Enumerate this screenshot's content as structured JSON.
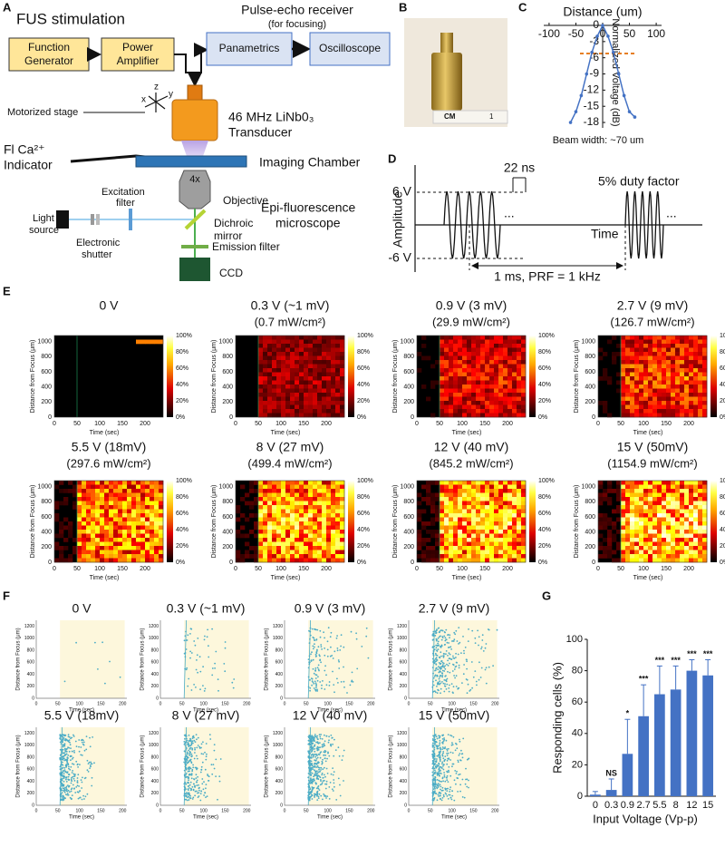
{
  "figure": {
    "labels": {
      "a": "A",
      "b": "B",
      "c": "C",
      "d": "D",
      "e": "E",
      "f": "F",
      "g": "G"
    }
  },
  "panel_a": {
    "title": "FUS stimulation",
    "function_generator": [
      "Function",
      "Generator"
    ],
    "power_amplifier": [
      "Power",
      "Amplifier"
    ],
    "pulse_echo": "Pulse-echo receiver",
    "for_focusing": "(for focusing)",
    "panametrics": "Panametrics",
    "oscilloscope": "Oscilloscope",
    "axes": [
      "x",
      "y",
      "z"
    ],
    "motorized_stage": "Motorized stage",
    "transducer": [
      "46 MHz LiNb0₃",
      "Transducer"
    ],
    "indicator": [
      "Fl Ca²⁺",
      "Indicator"
    ],
    "imaging_chamber": "Imaging Chamber",
    "magnification": "4x",
    "objective": "Objective",
    "excitation_filter": [
      "Excitation",
      "filter"
    ],
    "microscope": [
      "Epi-fluorescence",
      "microscope"
    ],
    "light_source": [
      "Light",
      "source"
    ],
    "dichroic_mirror": [
      "Dichroic",
      "mirror"
    ],
    "electronic_shutter": [
      "Electronic",
      "shutter"
    ],
    "emission_filter": "Emission filter",
    "camera": "CCD"
  },
  "panel_b": {
    "ruler_label": "CM",
    "ruler_number": "1"
  },
  "panel_d": {
    "amplitude_label": "Amplitude",
    "time_label": "Time",
    "positive": "6 V",
    "negative": "-6 V",
    "pulse_width": "22 ns",
    "duty": "5% duty factor",
    "period": "1 ms, PRF = 1 kHz",
    "ellipsis": "..."
  },
  "panel_e": {
    "panels": [
      {
        "title": "0 V"
      },
      {
        "title": "0.3 V (~1 mV)",
        "subtitle": "(0.7 mW/cm²)"
      },
      {
        "title": "0.9 V (3 mV)",
        "subtitle": "(29.9 mW/cm²)"
      },
      {
        "title": "2.7 V (9 mV)",
        "subtitle": "(126.7 mW/cm²)"
      },
      {
        "title": "5.5 V (18mV)",
        "subtitle": "(297.6 mW/cm²)"
      },
      {
        "title": "8 V (27 mV)",
        "subtitle": "(499.4 mW/cm²)"
      },
      {
        "title": "12 V (40 mV)",
        "subtitle": "(845.2 mW/cm²)"
      },
      {
        "title": "15 V (50mV)",
        "subtitle": "(1154.9 mW/cm²)"
      }
    ],
    "y_label": "Distance from Focus (μm)",
    "x_label": "Time (sec)",
    "yticks": [
      "0",
      "200",
      "400",
      "600",
      "800",
      "1000"
    ],
    "xticks": [
      "0",
      "50",
      "100",
      "150",
      "200"
    ],
    "colorbar": [
      "100%",
      "80%",
      "60%",
      "40%",
      "20%",
      "0%"
    ]
  },
  "panel_f": {
    "titles": [
      "0 V",
      "0.3 V (~1 mV)",
      "0.9 V (3 mV)",
      "2.7 V (9 mV)",
      "5.5 V (18mV)",
      "8 V (27 mV)",
      "12 V (40 mV)",
      "15 V (50mV)"
    ],
    "y_label": "Distance from Focus (μm)",
    "x_label": "Time (sec)",
    "yticks": [
      "0",
      "200",
      "400",
      "600",
      "800",
      "1000",
      "1200"
    ],
    "xticks": [
      "0",
      "50",
      "100",
      "150",
      "200"
    ]
  },
  "chart_data": [
    {
      "type": "line",
      "title": "Distance (um)",
      "y_label": "Normalized Voltage (dB)",
      "annotation": "Beam width: ~70 um",
      "x": [
        -60,
        -50,
        -40,
        -30,
        -20,
        -10,
        0,
        10,
        20,
        30,
        40,
        50,
        60
      ],
      "values": [
        -18,
        -16,
        -13,
        -9,
        -5,
        -2,
        0,
        -2,
        -5,
        -9,
        -13,
        -16,
        -17
      ],
      "color": "#4472c4",
      "xlim": [
        -110,
        110
      ],
      "ylim": [
        -19,
        0
      ],
      "xticks": [
        -100,
        -50,
        0,
        50,
        100
      ],
      "yticks": [
        0,
        -3,
        -6,
        -9,
        -12,
        -15,
        -18
      ]
    },
    {
      "type": "bar",
      "y_label": "Responding cells (%)",
      "x_label": "Input Voltage (Vp-p)",
      "categories": [
        "0",
        "0.3",
        "0.9",
        "2.7",
        "5.5",
        "8",
        "12",
        "15"
      ],
      "values": [
        1,
        4,
        27,
        51,
        65,
        68,
        80,
        77
      ],
      "errors": [
        2,
        7,
        22,
        20,
        18,
        15,
        7,
        10
      ],
      "significance": [
        {
          "index": 1,
          "label": "NS"
        },
        {
          "index": 2,
          "label": "*"
        },
        {
          "index": 3,
          "label": "***"
        },
        {
          "index": 4,
          "label": "***"
        },
        {
          "index": 5,
          "label": "***"
        },
        {
          "index": 6,
          "label": "***"
        },
        {
          "index": 7,
          "label": "***"
        }
      ],
      "color": "#4472c4",
      "ylim": [
        0,
        100
      ],
      "yticks": [
        0,
        20,
        40,
        60,
        80,
        100
      ]
    }
  ]
}
